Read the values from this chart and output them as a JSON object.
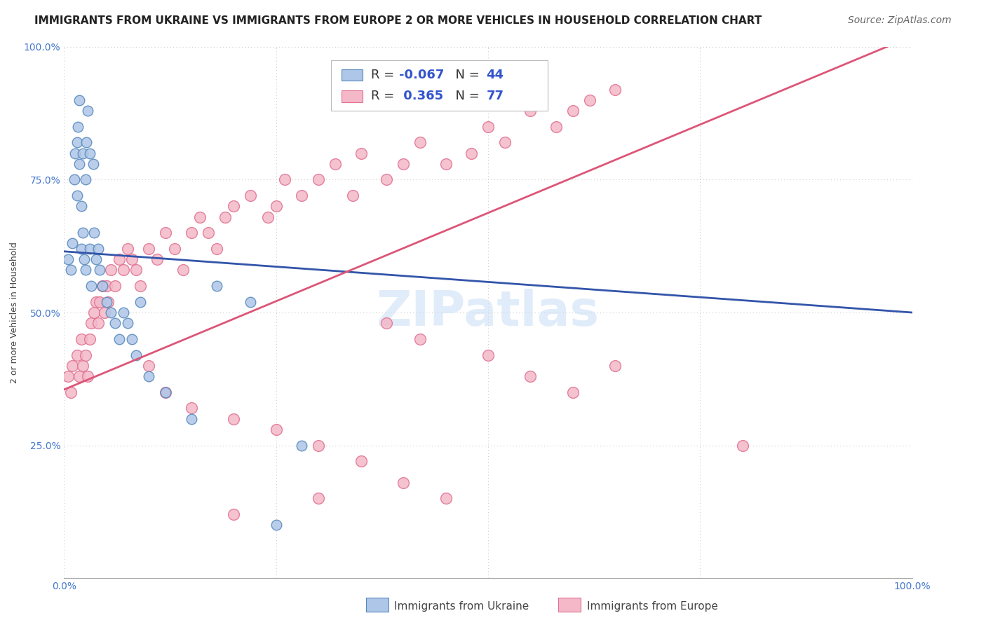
{
  "title": "IMMIGRANTS FROM UKRAINE VS IMMIGRANTS FROM EUROPE 2 OR MORE VEHICLES IN HOUSEHOLD CORRELATION CHART",
  "source": "Source: ZipAtlas.com",
  "ylabel": "2 or more Vehicles in Household",
  "background_color": "#ffffff",
  "watermark": "ZIPatlas",
  "blue_fill": "#aec6e8",
  "blue_edge": "#5588bb",
  "pink_fill": "#f4b8c8",
  "pink_edge": "#e07090",
  "blue_line_color": "#3355aa",
  "pink_line_color": "#dd5577",
  "R_blue": -0.067,
  "N_blue": 44,
  "R_pink": 0.365,
  "N_pink": 77,
  "tick_color": "#4477cc",
  "title_fontsize": 11,
  "source_fontsize": 10,
  "ylabel_fontsize": 9,
  "tick_fontsize": 10,
  "legend_fontsize": 13,
  "blue_x": [
    0.005,
    0.008,
    0.01,
    0.012,
    0.013,
    0.015,
    0.015,
    0.016,
    0.018,
    0.018,
    0.02,
    0.02,
    0.022,
    0.022,
    0.024,
    0.025,
    0.025,
    0.026,
    0.028,
    0.03,
    0.03,
    0.032,
    0.034,
    0.035,
    0.038,
    0.04,
    0.042,
    0.045,
    0.05,
    0.055,
    0.06,
    0.065,
    0.07,
    0.075,
    0.08,
    0.085,
    0.09,
    0.1,
    0.12,
    0.15,
    0.18,
    0.22,
    0.25,
    0.28
  ],
  "blue_y": [
    0.6,
    0.58,
    0.63,
    0.75,
    0.8,
    0.82,
    0.72,
    0.85,
    0.78,
    0.9,
    0.62,
    0.7,
    0.65,
    0.8,
    0.6,
    0.58,
    0.75,
    0.82,
    0.88,
    0.62,
    0.8,
    0.55,
    0.78,
    0.65,
    0.6,
    0.62,
    0.58,
    0.55,
    0.52,
    0.5,
    0.48,
    0.45,
    0.5,
    0.48,
    0.45,
    0.42,
    0.52,
    0.38,
    0.35,
    0.3,
    0.55,
    0.52,
    0.1,
    0.25
  ],
  "pink_x": [
    0.005,
    0.008,
    0.01,
    0.015,
    0.018,
    0.02,
    0.022,
    0.025,
    0.028,
    0.03,
    0.032,
    0.035,
    0.038,
    0.04,
    0.042,
    0.045,
    0.048,
    0.05,
    0.052,
    0.055,
    0.06,
    0.065,
    0.07,
    0.075,
    0.08,
    0.085,
    0.09,
    0.1,
    0.11,
    0.12,
    0.13,
    0.14,
    0.15,
    0.16,
    0.17,
    0.18,
    0.19,
    0.2,
    0.22,
    0.24,
    0.25,
    0.26,
    0.28,
    0.3,
    0.32,
    0.34,
    0.35,
    0.38,
    0.4,
    0.42,
    0.45,
    0.48,
    0.5,
    0.52,
    0.55,
    0.58,
    0.6,
    0.62,
    0.65,
    0.1,
    0.12,
    0.15,
    0.2,
    0.25,
    0.3,
    0.35,
    0.4,
    0.45,
    0.5,
    0.55,
    0.6,
    0.65,
    0.38,
    0.42,
    0.8,
    0.3,
    0.2
  ],
  "pink_y": [
    0.38,
    0.35,
    0.4,
    0.42,
    0.38,
    0.45,
    0.4,
    0.42,
    0.38,
    0.45,
    0.48,
    0.5,
    0.52,
    0.48,
    0.52,
    0.55,
    0.5,
    0.55,
    0.52,
    0.58,
    0.55,
    0.6,
    0.58,
    0.62,
    0.6,
    0.58,
    0.55,
    0.62,
    0.6,
    0.65,
    0.62,
    0.58,
    0.65,
    0.68,
    0.65,
    0.62,
    0.68,
    0.7,
    0.72,
    0.68,
    0.7,
    0.75,
    0.72,
    0.75,
    0.78,
    0.72,
    0.8,
    0.75,
    0.78,
    0.82,
    0.78,
    0.8,
    0.85,
    0.82,
    0.88,
    0.85,
    0.88,
    0.9,
    0.92,
    0.4,
    0.35,
    0.32,
    0.3,
    0.28,
    0.25,
    0.22,
    0.18,
    0.15,
    0.42,
    0.38,
    0.35,
    0.4,
    0.48,
    0.45,
    0.25,
    0.15,
    0.12
  ]
}
